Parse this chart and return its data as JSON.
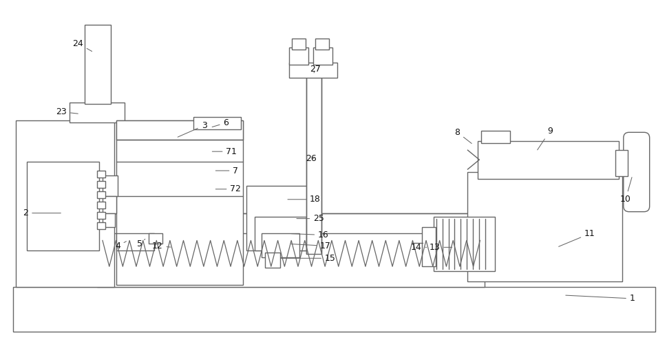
{
  "fig_width": 9.69,
  "fig_height": 4.97,
  "dpi": 100,
  "bg_color": "#ffffff",
  "lc": "#666666",
  "lw": 1.0
}
